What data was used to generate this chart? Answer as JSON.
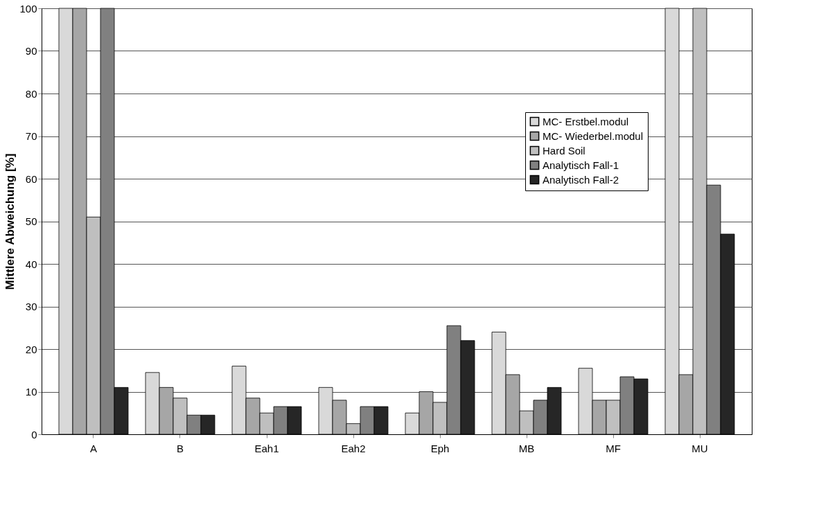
{
  "chart_data": {
    "type": "bar",
    "ylabel": "Mittlere Abweichung  [%]",
    "categories": [
      "A",
      "B",
      "Eah1",
      "Eah2",
      "Eph",
      "MB",
      "MF",
      "MU"
    ],
    "series": [
      {
        "name": "MC- Erstbel.modul",
        "color": "#d9d9d9",
        "values": [
          100,
          14.5,
          16,
          11,
          5,
          24,
          15.5,
          100
        ]
      },
      {
        "name": "MC- Wiederbel.modul",
        "color": "#a6a6a6",
        "values": [
          100,
          11,
          8.5,
          8,
          10,
          14,
          8,
          14
        ]
      },
      {
        "name": "Hard Soil",
        "color": "#bfbfbf",
        "values": [
          51,
          8.5,
          5,
          2.5,
          7.5,
          5.5,
          8,
          100
        ]
      },
      {
        "name": "Analytisch Fall-1",
        "color": "#808080",
        "values": [
          100,
          4.5,
          6.5,
          6.5,
          25.5,
          8,
          13.5,
          58.5
        ]
      },
      {
        "name": "Analytisch Fall-2",
        "color": "#262626",
        "values": [
          11,
          4.5,
          6.5,
          6.5,
          22,
          11,
          13,
          47
        ]
      }
    ],
    "ylim": [
      0,
      100
    ],
    "yticks": [
      0,
      10,
      20,
      30,
      40,
      50,
      60,
      70,
      80,
      90,
      100
    ],
    "grid": "y",
    "legend": "top right"
  }
}
